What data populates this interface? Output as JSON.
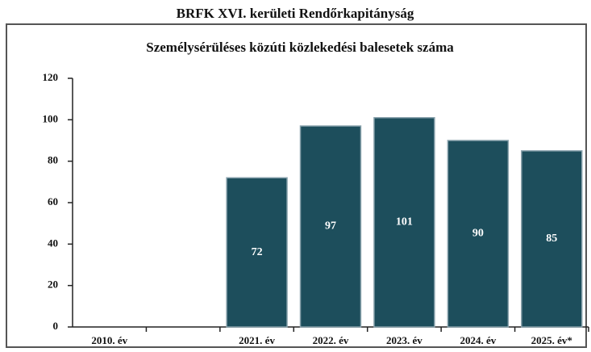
{
  "header": {
    "title": "BRFK XVI. kerületi Rendőrkapitányság"
  },
  "chart_data": {
    "type": "bar",
    "title": "Személysérüléses közúti közlekedési balesetek száma",
    "categories": [
      "2010. év",
      null,
      "2021. év",
      "2022. év",
      "2023. év",
      "2024. év",
      "2025. év*"
    ],
    "values": [
      null,
      null,
      72,
      97,
      101,
      90,
      85
    ],
    "color": "#1d4e5c",
    "ylim": [
      0,
      120
    ],
    "yticks": [
      0,
      20,
      40,
      60,
      80,
      100,
      120
    ],
    "grid": false
  }
}
